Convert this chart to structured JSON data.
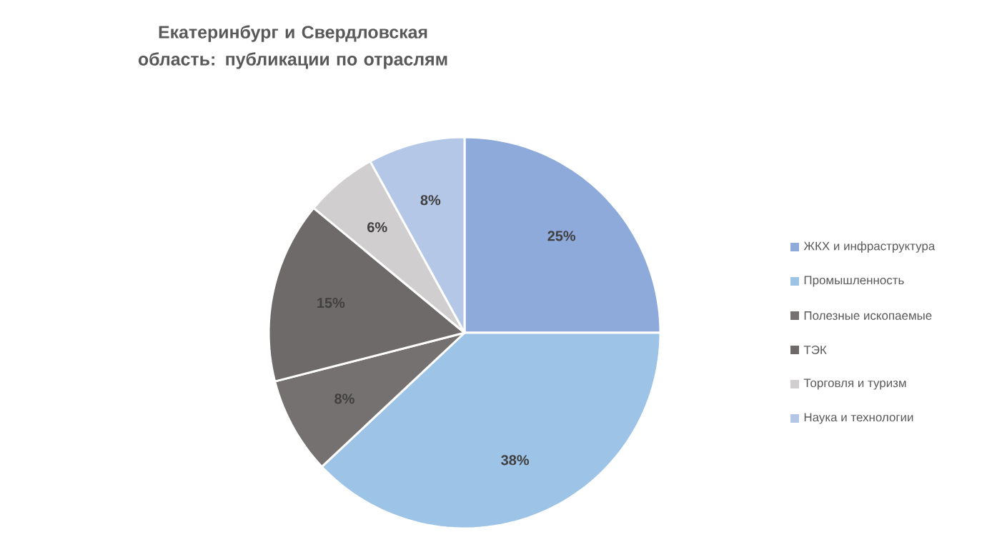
{
  "chart_data": {
    "type": "pie",
    "title": "Екатеринбург и Свердловская область: публикации по отраслям",
    "categories": [
      "ЖКХ и инфраструктура",
      "Промышленность",
      "Полезные ископаемые",
      "ТЭК",
      "Торговля и туризм",
      "Наука и технологии"
    ],
    "values": [
      25,
      38,
      8,
      15,
      6,
      8
    ],
    "value_labels": [
      "25%",
      "38%",
      "8%",
      "15%",
      "6%",
      "8%"
    ],
    "colors": [
      "#8eaadb",
      "#9dc3e6",
      "#767171",
      "#6e6a69",
      "#d0cece",
      "#b4c7e7"
    ],
    "legend": "right"
  }
}
